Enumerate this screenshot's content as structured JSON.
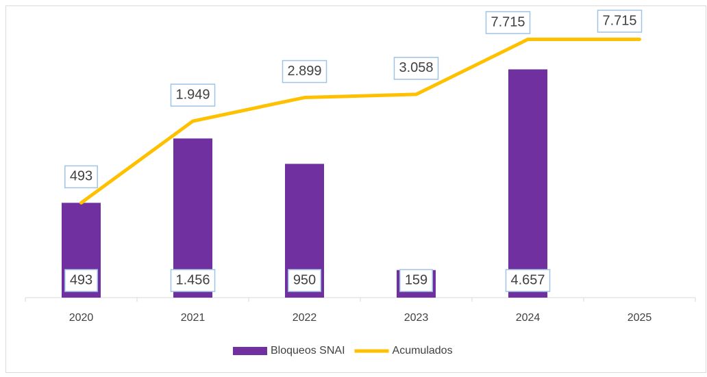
{
  "chart_data": {
    "type": "bar_line",
    "categories": [
      "2020",
      "2021",
      "2022",
      "2023",
      "2024",
      "2025"
    ],
    "series": [
      {
        "name": "Bloqueos SNAI",
        "type": "bar",
        "color": "#7030a0",
        "values": [
          493,
          1456,
          950,
          159,
          4657,
          null
        ],
        "value_labels": [
          "493",
          "1.456",
          "950",
          "159",
          "4.657",
          null
        ]
      },
      {
        "name": "Acumulados",
        "type": "line",
        "color": "#ffc000",
        "values": [
          493,
          1949,
          2899,
          3058,
          7715,
          7715
        ],
        "value_labels": [
          "493",
          "1.949",
          "2.899",
          "3.058",
          "7.715",
          "7.715"
        ]
      }
    ],
    "ylim": [
      100,
      10000
    ],
    "log_scale": true,
    "legend": "bottom"
  }
}
